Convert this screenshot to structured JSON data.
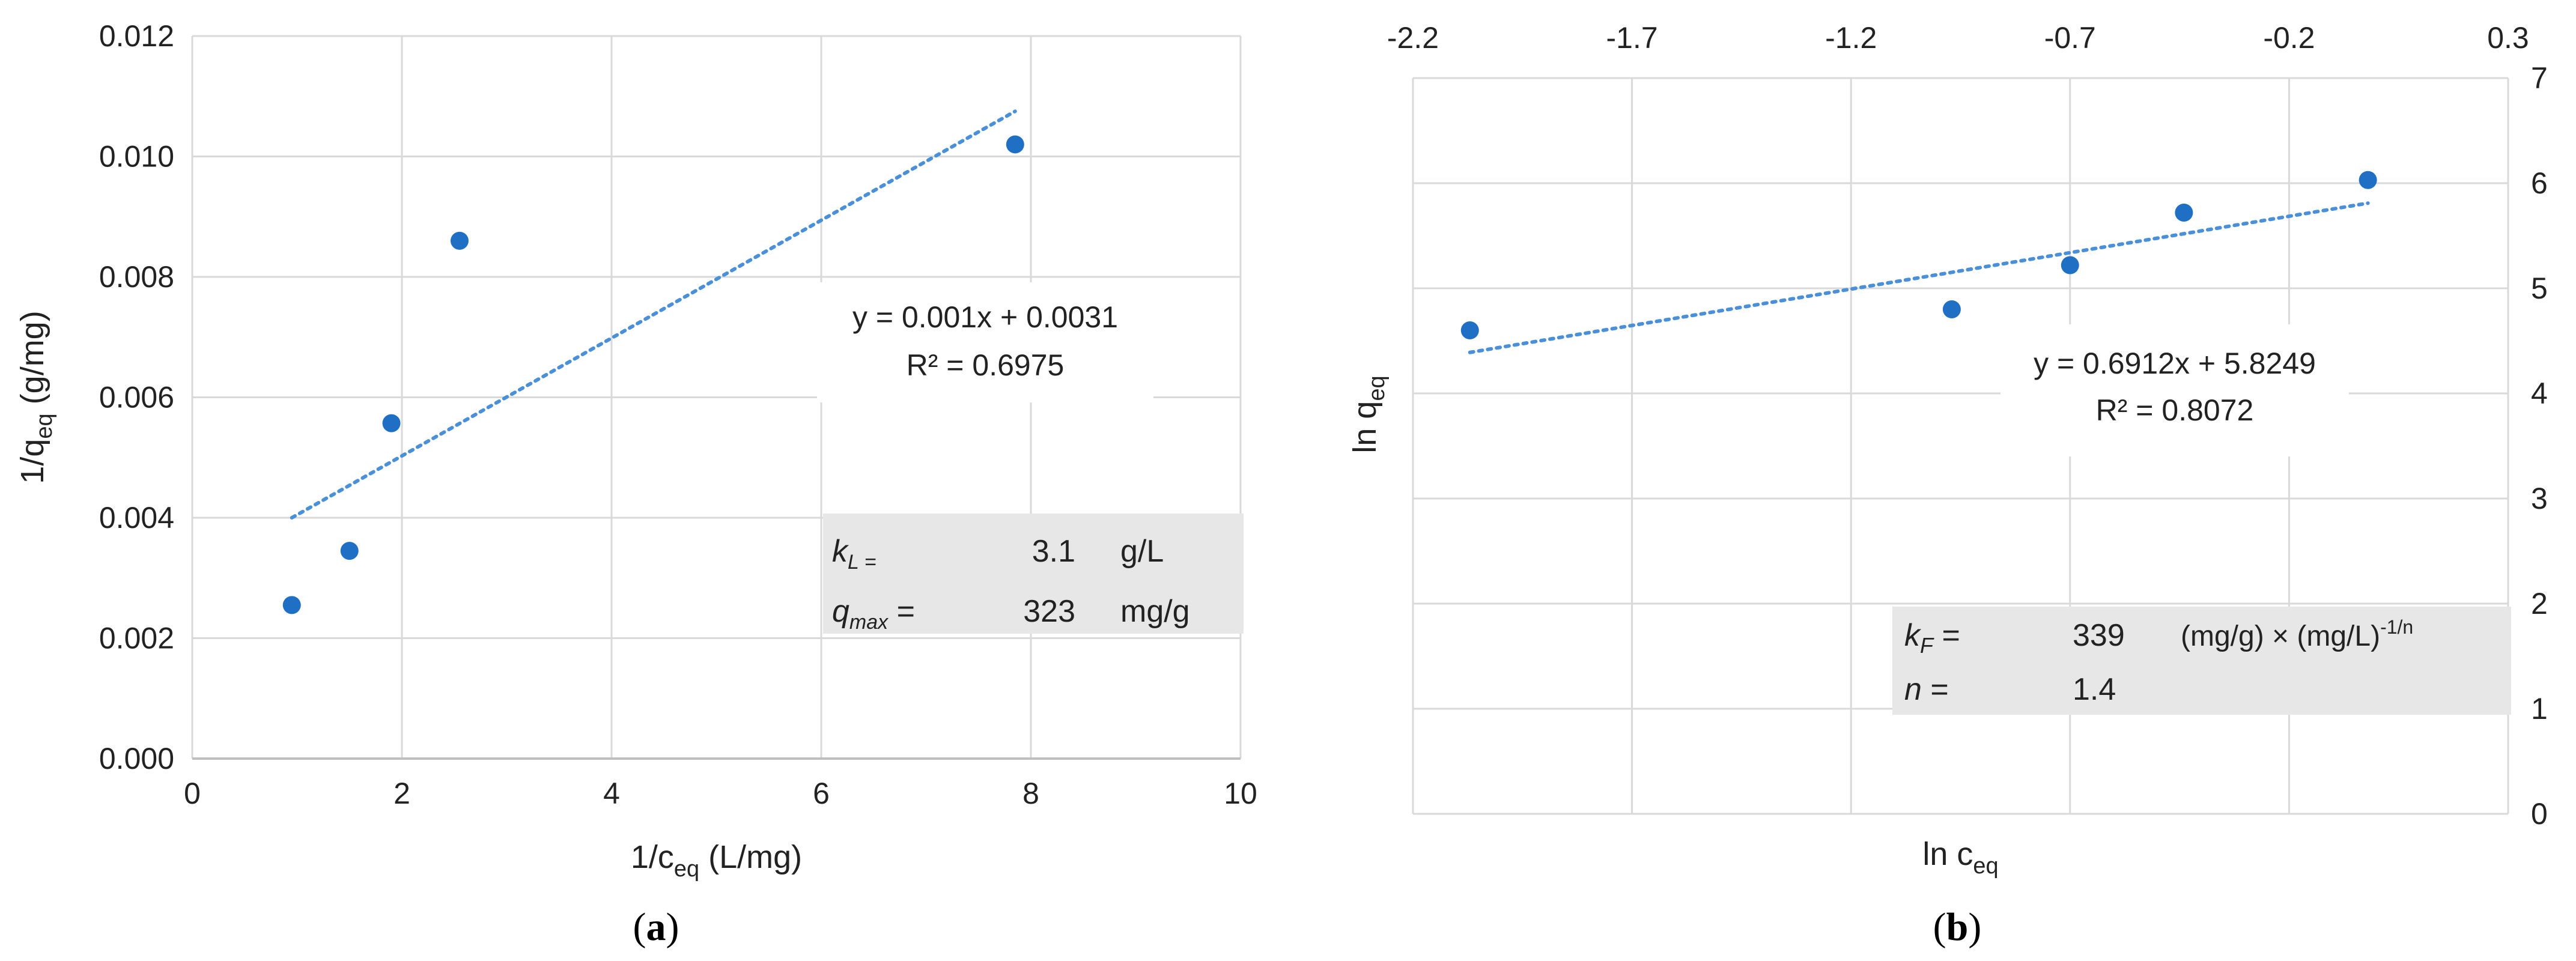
{
  "chart_data": [
    {
      "type": "scatter",
      "panel_label_open": "(",
      "panel_label_letter": "a",
      "panel_label_close": ")",
      "xlabel_main": "1/c",
      "xlabel_sub": "eq",
      "xlabel_unit": " (L/mg)",
      "ylabel_main": "1/q",
      "ylabel_sub": "eq",
      "ylabel_unit": " (g/mg)",
      "xlim": [
        0,
        10
      ],
      "ylim": [
        0,
        0.012
      ],
      "xticks": [
        "0",
        "2",
        "4",
        "6",
        "8",
        "10"
      ],
      "yticks": [
        "0.000",
        "0.002",
        "0.004",
        "0.006",
        "0.008",
        "0.010",
        "0.012"
      ],
      "grid": true,
      "series": [
        {
          "points": [
            {
              "x": 0.95,
              "y": 0.00255
            },
            {
              "x": 1.5,
              "y": 0.00345
            },
            {
              "x": 1.9,
              "y": 0.00557
            },
            {
              "x": 2.55,
              "y": 0.0086
            },
            {
              "x": 7.85,
              "y": 0.0102
            }
          ],
          "color": "#1f6fc5"
        }
      ],
      "trendline": {
        "x1": 0.95,
        "y1": 0.004,
        "x2": 7.85,
        "y2": 0.01075,
        "color": "#4a90d9",
        "style": "dotted"
      },
      "equation": "y = 0.001x + 0.0031",
      "r2": "R² = 0.6975",
      "param_table": [
        {
          "sym_main": "k",
          "sym_sub": "L =",
          "equals": "",
          "value": "3.1",
          "unit": "g/L",
          "unit_sup": ""
        },
        {
          "sym_main": "q",
          "sym_sub": "max",
          "equals": " =",
          "value": "323",
          "unit": "mg/g",
          "unit_sup": ""
        }
      ]
    },
    {
      "type": "scatter",
      "panel_label_open": "(",
      "panel_label_letter": "b",
      "panel_label_close": ")",
      "xlabel_main": "ln c",
      "xlabel_sub": "eq",
      "ylabel_main": "ln q",
      "ylabel_sub": "eq",
      "xlim": [
        -2.2,
        0.3
      ],
      "ylim": [
        0,
        7
      ],
      "xticks": [
        "-2.2",
        "-1.7",
        "-1.2",
        "-0.7",
        "-0.2",
        "0.3"
      ],
      "yticks": [
        "0",
        "1",
        "2",
        "3",
        "4",
        "5",
        "6",
        "7"
      ],
      "x_axis_position": "top",
      "y_axis_position": "right",
      "grid": true,
      "series": [
        {
          "points": [
            {
              "x": -2.07,
              "y": 4.6
            },
            {
              "x": -0.97,
              "y": 4.8
            },
            {
              "x": -0.7,
              "y": 5.22
            },
            {
              "x": -0.44,
              "y": 5.72
            },
            {
              "x": -0.02,
              "y": 6.03
            }
          ],
          "color": "#1f6fc5"
        }
      ],
      "trendline": {
        "x1": -2.07,
        "y1": 4.39,
        "x2": -0.02,
        "y2": 5.81,
        "color": "#4a90d9",
        "style": "dotted"
      },
      "equation": "y = 0.6912x + 5.8249",
      "r2": "R² = 0.8072",
      "param_table": [
        {
          "sym_main": "k",
          "sym_sub": "F",
          "equals": " =",
          "value": "339",
          "unit": "(mg/g) × (mg/L)",
          "unit_sup": "-1/n"
        },
        {
          "sym_main": "n",
          "sym_sub": "",
          "equals": " =",
          "value": "1.4",
          "unit": "",
          "unit_sup": ""
        }
      ]
    }
  ]
}
